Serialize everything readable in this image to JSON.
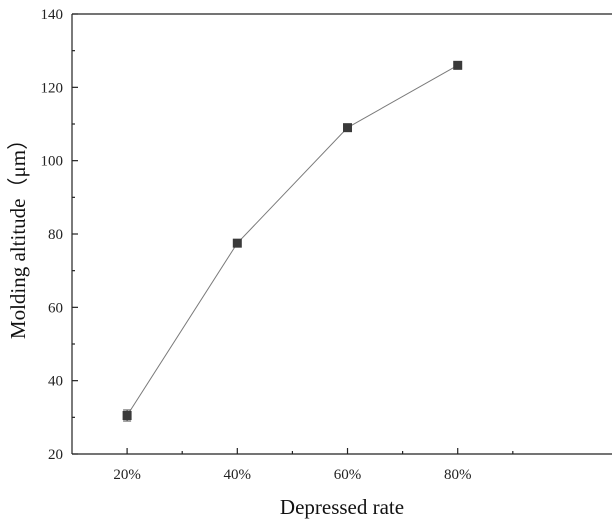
{
  "chart_data": {
    "type": "line",
    "title": "",
    "xlabel": "Depressed rate",
    "ylabel": "Molding altitude（μm）",
    "categories": [
      "20%",
      "40%",
      "60%",
      "80%"
    ],
    "series": [
      {
        "values": [
          30.5,
          77.5,
          109,
          126
        ],
        "error": [
          1.5,
          0,
          0,
          0
        ]
      }
    ],
    "ylim": [
      20,
      140
    ],
    "yticks": [
      20,
      40,
      60,
      80,
      100,
      120,
      140
    ],
    "grid": false
  }
}
